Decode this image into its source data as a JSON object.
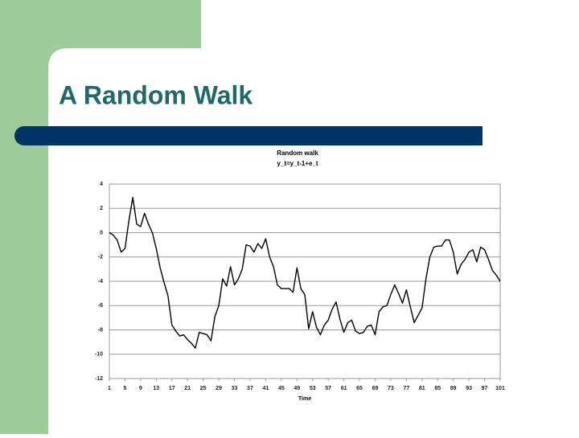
{
  "slide_title": "A Random Walk",
  "chart_data": {
    "type": "line",
    "title": "Random walk",
    "subtitle": "y_t=y_t-1+e_t",
    "x_label": "Time",
    "x": [
      1,
      2,
      3,
      4,
      5,
      6,
      7,
      8,
      9,
      10,
      11,
      12,
      13,
      14,
      15,
      16,
      17,
      18,
      19,
      20,
      21,
      22,
      23,
      24,
      25,
      26,
      27,
      28,
      29,
      30,
      31,
      32,
      33,
      34,
      35,
      36,
      37,
      38,
      39,
      40,
      41,
      42,
      43,
      44,
      45,
      46,
      47,
      48,
      49,
      50,
      51,
      52,
      53,
      54,
      55,
      56,
      57,
      58,
      59,
      60,
      61,
      62,
      63,
      64,
      65,
      66,
      67,
      68,
      69,
      70,
      71,
      72,
      73,
      74,
      75,
      76,
      77,
      78,
      79,
      80,
      81,
      82,
      83,
      84,
      85,
      86,
      87,
      88,
      89,
      90,
      91,
      92,
      93,
      94,
      95,
      96,
      97,
      98,
      99,
      100,
      101
    ],
    "values": [
      0,
      -0.2,
      -0.6,
      -1.6,
      -1.3,
      1.0,
      2.9,
      0.7,
      0.5,
      1.6,
      0.7,
      0.0,
      -1.3,
      -2.9,
      -4.1,
      -5.2,
      -7.6,
      -8.1,
      -8.5,
      -8.4,
      -8.8,
      -9.1,
      -9.5,
      -8.2,
      -8.3,
      -8.4,
      -8.9,
      -6.9,
      -6.0,
      -3.8,
      -4.4,
      -2.8,
      -4.3,
      -3.8,
      -3.0,
      -1.0,
      -1.1,
      -1.6,
      -0.9,
      -1.3,
      -0.5,
      -2.0,
      -2.8,
      -4.3,
      -4.6,
      -4.6,
      -4.6,
      -4.9,
      -2.9,
      -4.6,
      -5.1,
      -7.9,
      -6.5,
      -7.8,
      -8.4,
      -7.6,
      -7.2,
      -6.3,
      -5.7,
      -7.1,
      -8.2,
      -7.4,
      -7.2,
      -8.1,
      -8.3,
      -8.2,
      -7.7,
      -7.6,
      -8.4,
      -6.5,
      -6.1,
      -6.0,
      -5.1,
      -4.3,
      -5.0,
      -5.8,
      -4.7,
      -6.1,
      -7.4,
      -6.8,
      -6.2,
      -3.8,
      -2.0,
      -1.2,
      -1.1,
      -1.1,
      -0.6,
      -0.6,
      -1.6,
      -3.4,
      -2.6,
      -2.2,
      -1.6,
      -1.4,
      -2.4,
      -1.2,
      -1.4,
      -2.2,
      -3.1,
      -3.5,
      -4.0
    ],
    "color": "#000000",
    "xlim": [
      1,
      101
    ],
    "xticks": [
      1,
      5,
      9,
      13,
      17,
      21,
      25,
      29,
      33,
      37,
      41,
      45,
      49,
      53,
      57,
      61,
      65,
      69,
      73,
      77,
      81,
      85,
      89,
      93,
      97,
      101
    ],
    "ylim": [
      -12,
      4
    ],
    "yticks": [
      -12,
      -10,
      -8,
      -6,
      -4,
      -2,
      0,
      2,
      4
    ],
    "grid": true
  }
}
